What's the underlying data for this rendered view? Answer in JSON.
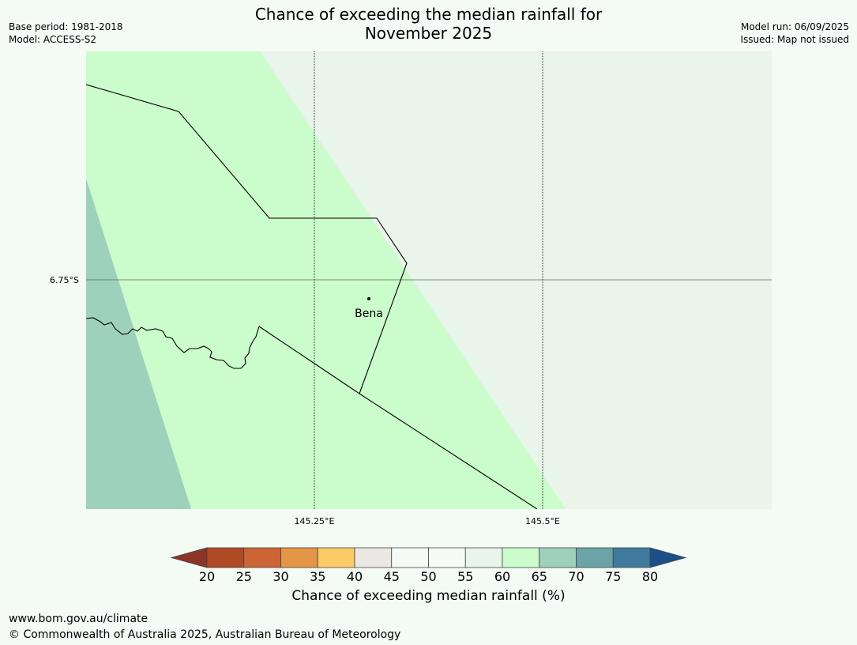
{
  "title_line1": "Chance of exceeding the median rainfall for",
  "title_line2": "November 2025",
  "meta": {
    "base_period": "Base period: 1981-2018",
    "model": "Model: ACCESS-S2",
    "model_run": "Model run: 06/09/2025",
    "issued": "Issued: Map not issued"
  },
  "map": {
    "place_label": "Bena",
    "lat_label": "6.75°S",
    "lon_labels": [
      "145.25°E",
      "145.5°E"
    ],
    "colors": {
      "band_55_60": "#e9f4ea",
      "band_60_65": "#cbfccb",
      "band_65_70": "#9dd1bc",
      "boundary": "#000000"
    }
  },
  "colorbar": {
    "title": "Chance of exceeding median rainfall (%)",
    "ticks": [
      "20",
      "25",
      "30",
      "35",
      "40",
      "45",
      "50",
      "55",
      "60",
      "65",
      "70",
      "75",
      "80"
    ],
    "under_color": "#8e3426",
    "over_color": "#1a4f8a",
    "colors": [
      "#b04a25",
      "#cc6535",
      "#e49545",
      "#fdcb66",
      "#ebe8e4",
      "#f6faf6",
      "#f7fbf7",
      "#e9f4ea",
      "#cbfccb",
      "#9dd1bc",
      "#6ca3a6",
      "#3f7a9e"
    ]
  },
  "footer": {
    "url": "www.bom.gov.au/climate",
    "copyright": "© Commonwealth of Australia 2025, Australian Bureau of Meteorology"
  }
}
